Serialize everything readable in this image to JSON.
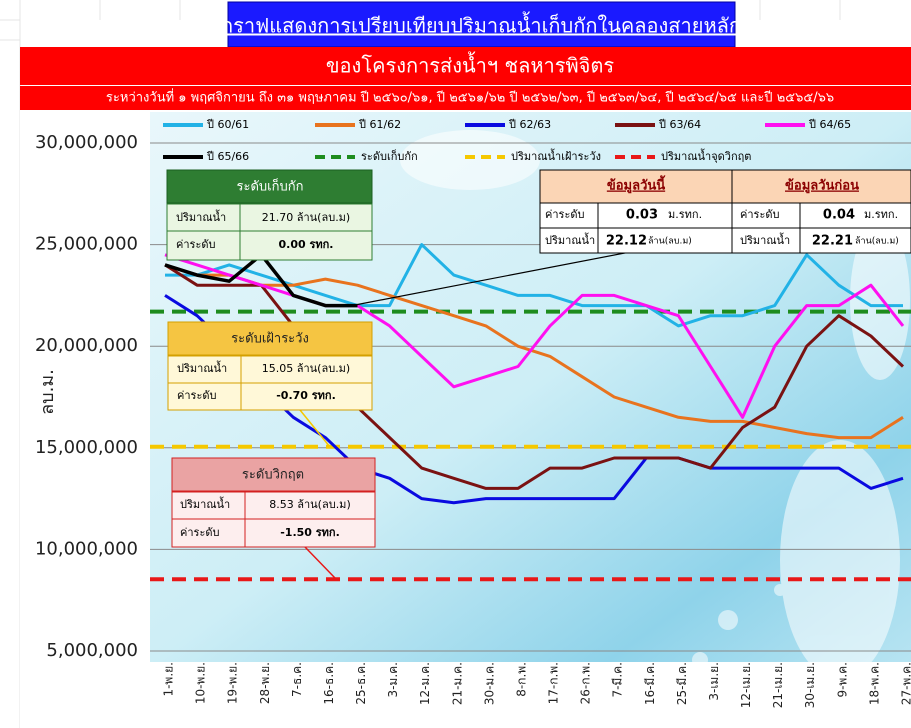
{
  "chart_data": {
    "type": "line",
    "title": "กราฟแสดงการเปรียบเทียบปริมาณน้ำเก็บกักในคลองสายหลัก",
    "subtitle": "ของโครงการส่งน้ำฯ ชลหารพิจิตร",
    "period": "ระหว่างวันที่ ๑ พฤศจิกายน  ถึง ๓๑ พฤษภาคม  ปี ๒๕๖๐/๖๑, ปี ๒๕๖๑/๖๒ ปี ๒๕๖๒/๖๓, ปี ๒๕๖๓/๖๔, ปี ๒๕๖๔/๖๕ และปี ๒๕๖๕/๖๖",
    "y_label": "ลบ.ม.",
    "categories": [
      "1-พ.ย.",
      "10-พ.ย.",
      "19-พ.ย.",
      "28-พ.ย.",
      "7-ธ.ค.",
      "16-ธ.ค.",
      "25-ธ.ค.",
      "3-ม.ค.",
      "12-ม.ค.",
      "21-ม.ค.",
      "30-ม.ค.",
      "8-ก.พ.",
      "17-ก.พ.",
      "26-ก.พ.",
      "7-มี.ค.",
      "16-มี.ค.",
      "25-มี.ค.",
      "3-เม.ย.",
      "12-เม.ย.",
      "21-เม.ย.",
      "30-เม.ย.",
      "9-พ.ค.",
      "18-พ.ค.",
      "27-พ.ค."
    ],
    "series": [
      {
        "name": "ปี 60/61",
        "color": "#22b2e6",
        "values": [
          23500000,
          23500000,
          24000000,
          23500000,
          23000000,
          22500000,
          22000000,
          22000000,
          25000000,
          23500000,
          23000000,
          22500000,
          22500000,
          22000000,
          22000000,
          22000000,
          21000000,
          21500000,
          21500000,
          22000000,
          24500000,
          23000000,
          22000000,
          22000000
        ]
      },
      {
        "name": "ปี 61/62",
        "color": "#e8731e",
        "values": [
          24000000,
          23500000,
          23500000,
          23000000,
          23000000,
          23300000,
          23000000,
          22500000,
          22000000,
          21500000,
          21000000,
          20000000,
          19500000,
          18500000,
          17500000,
          17000000,
          16500000,
          16300000,
          16300000,
          16000000,
          15700000,
          15500000,
          15500000,
          16500000
        ]
      },
      {
        "name": "ปี 62/63",
        "color": "#0a0ae0",
        "values": [
          22500000,
          21500000,
          20000000,
          18000000,
          16500000,
          15500000,
          14000000,
          13500000,
          12500000,
          12300000,
          12500000,
          12500000,
          12500000,
          12500000,
          12500000,
          14500000,
          14500000,
          14000000,
          14000000,
          14000000,
          14000000,
          14000000,
          13000000,
          13500000
        ]
      },
      {
        "name": "ปี 63/64",
        "color": "#7a1212",
        "values": [
          24000000,
          23000000,
          23000000,
          23000000,
          21000000,
          19000000,
          17000000,
          15500000,
          14000000,
          13500000,
          13000000,
          13000000,
          14000000,
          14000000,
          14500000,
          14500000,
          14500000,
          14000000,
          16000000,
          17000000,
          20000000,
          21500000,
          20500000,
          19000000
        ]
      },
      {
        "name": "ปี 64/65",
        "color": "#ff10f0",
        "values": [
          24500000,
          24000000,
          23500000,
          23000000,
          22500000,
          22000000,
          22000000,
          21000000,
          19500000,
          18000000,
          18500000,
          19000000,
          21000000,
          22500000,
          22500000,
          22000000,
          21500000,
          19000000,
          16500000,
          20000000,
          22000000,
          22000000,
          23000000,
          21000000
        ]
      },
      {
        "name": "ปี 65/66",
        "color": "#000000",
        "values": [
          24000000,
          23500000,
          23200000,
          24500000,
          22500000,
          22000000,
          22000000,
          null,
          null,
          null,
          null,
          null,
          null,
          null,
          null,
          null,
          null,
          null,
          null,
          null,
          null,
          null,
          null,
          null
        ]
      }
    ],
    "thresholds": [
      {
        "name": "ระดับเก็บกัก",
        "color": "#1e8c1e",
        "value": 21700000
      },
      {
        "name": "ปริมาณน้ำเฝ้าระวัง",
        "color": "#f5c800",
        "value": 15050000
      },
      {
        "name": "ปริมาณน้ำจุดวิกฤต",
        "color": "#e81818",
        "value": 8530000
      }
    ],
    "ylim": [
      5000000,
      30000000
    ],
    "yticks": [
      {
        "value": 5000000,
        "label": "5,000,000"
      },
      {
        "value": 10000000,
        "label": "10,000,000"
      },
      {
        "value": 15000000,
        "label": "15,000,000"
      },
      {
        "value": 20000000,
        "label": "20,000,000"
      },
      {
        "value": 25000000,
        "label": "25,000,000"
      },
      {
        "value": 30000000,
        "label": "30,000,000"
      }
    ],
    "grid": true
  },
  "boxes": [
    {
      "title": "ระดับเก็บกัก",
      "rows": [
        [
          "ปริมาณน้ำ",
          "21.70  ล้าน(ลบ.ม)"
        ],
        [
          "ค่าระดับ",
          "0.00 รทก."
        ]
      ]
    },
    {
      "title": "ระดับเฝ้าระวัง",
      "rows": [
        [
          "ปริมาณน้ำ",
          "15.05 ล้าน(ลบ.ม)"
        ],
        [
          "ค่าระดับ",
          "-0.70 รทก."
        ]
      ]
    },
    {
      "title": "ระดับวิกฤต",
      "rows": [
        [
          "ปริมาณน้ำ",
          "8.53  ล้าน(ลบ.ม)"
        ],
        [
          "ค่าระดับ",
          "-1.50 รทก."
        ]
      ]
    }
  ],
  "info_table": {
    "headers": [
      "ข้อมูลวันนี้",
      "ข้อมูลวันก่อน"
    ],
    "rows": [
      [
        "ค่าระดับ",
        "0.03",
        "ม.รทก.",
        "ค่าระดับ",
        "0.04",
        "ม.รทก."
      ],
      [
        "ปริมาณน้ำ",
        "22.12",
        "ล้าน(ลบ.ม)",
        "ปริมาณน้ำ",
        "22.21",
        "ล้าน(ลบ.ม)"
      ]
    ]
  }
}
